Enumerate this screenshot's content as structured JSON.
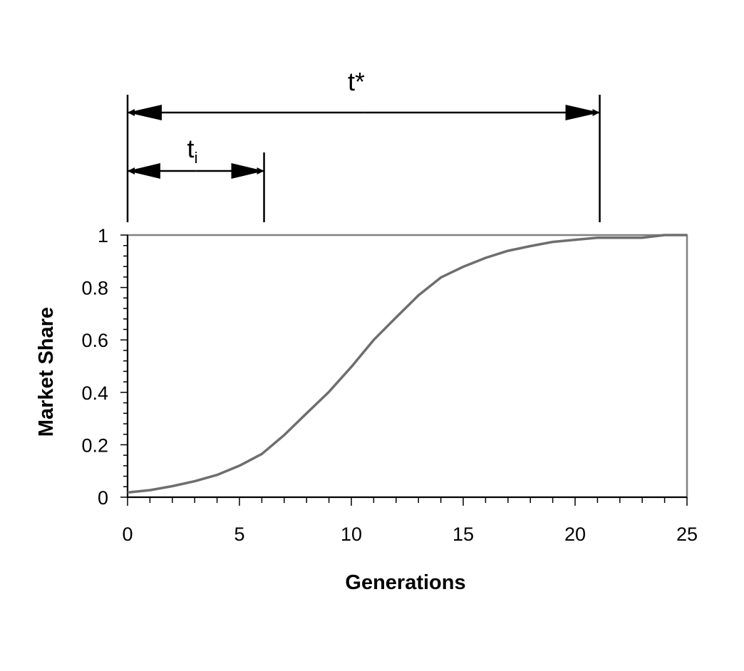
{
  "chart_data": {
    "type": "line",
    "title": "",
    "xlabel": "Generations",
    "ylabel": "Market Share",
    "xlim": [
      0,
      25
    ],
    "ylim": [
      0,
      1
    ],
    "x_ticks": [
      "0",
      "5",
      "10",
      "15",
      "20",
      "25"
    ],
    "y_ticks": [
      "0",
      "0.2",
      "0.4",
      "0.6",
      "0.8",
      "1"
    ],
    "grid": false,
    "legend": "none",
    "series": [
      {
        "color": "#6e6e6e",
        "x": [
          0,
          1,
          2,
          3,
          4,
          5,
          6,
          7,
          8,
          9,
          10,
          11,
          12,
          13,
          14,
          15,
          16,
          17,
          18,
          19,
          20,
          21,
          22,
          23,
          24,
          25
        ],
        "values": [
          0.018,
          0.027,
          0.042,
          0.061,
          0.085,
          0.12,
          0.165,
          0.237,
          0.32,
          0.402,
          0.497,
          0.6,
          0.686,
          0.77,
          0.838,
          0.879,
          0.913,
          0.94,
          0.958,
          0.974,
          0.982,
          0.99,
          0.99,
          0.99,
          1.0,
          1.0
        ]
      }
    ],
    "annotations": [
      {
        "label": "t*",
        "sub": "",
        "from": 0,
        "to": 21.1
      },
      {
        "label": "t",
        "sub": "i",
        "from": 0,
        "to": 6.1
      }
    ]
  }
}
